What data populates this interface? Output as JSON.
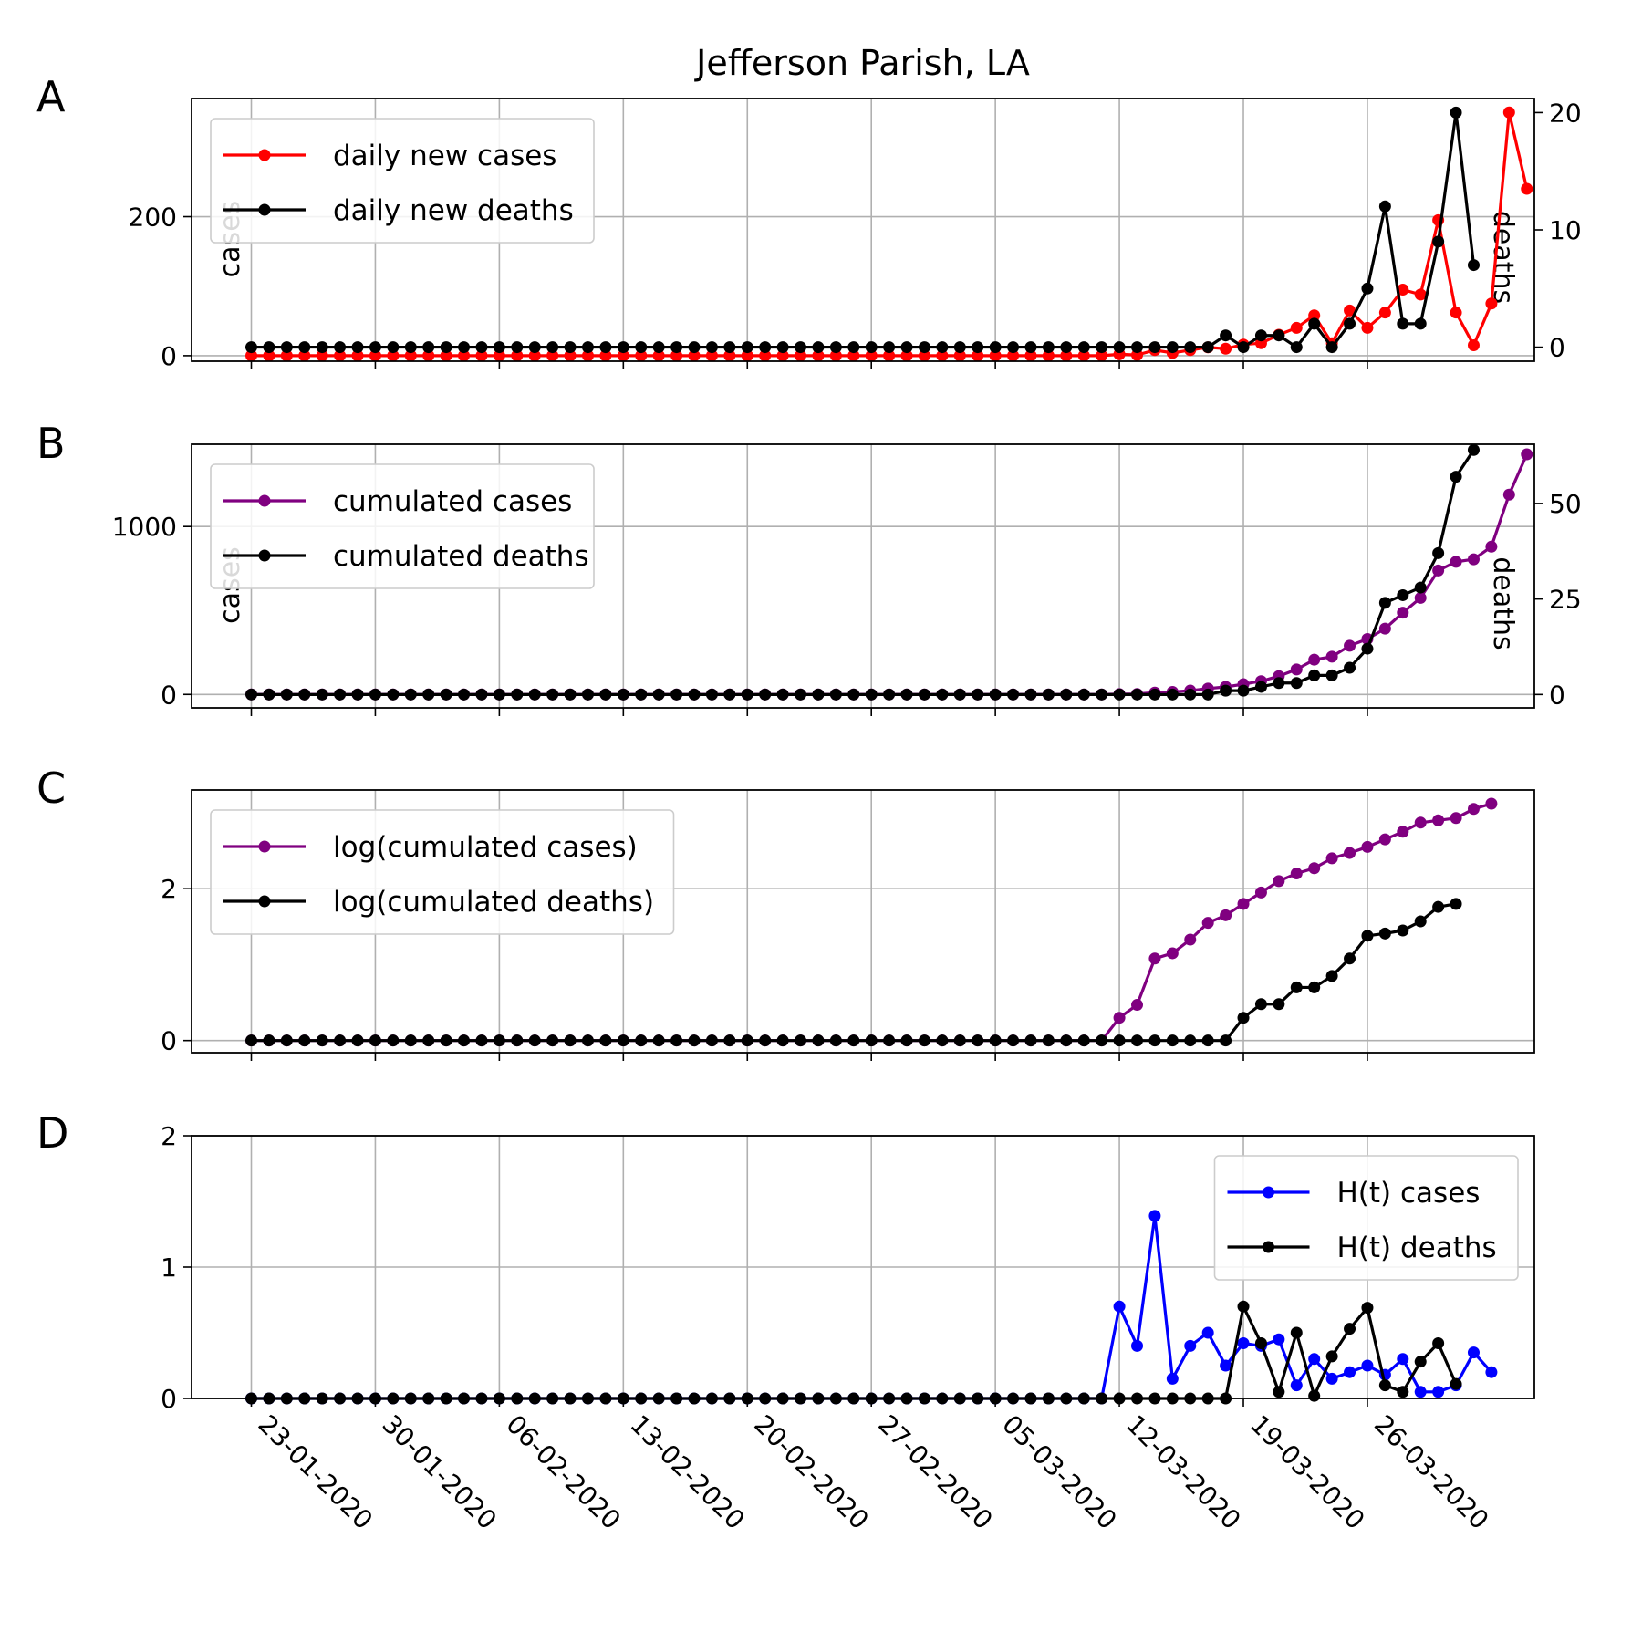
{
  "title": "Jefferson Parish, LA",
  "date_labels": [
    "23-01-2020",
    "30-01-2020",
    "06-02-2020",
    "13-02-2020",
    "20-02-2020",
    "27-02-2020",
    "05-03-2020",
    "12-03-2020",
    "19-03-2020",
    "26-03-2020"
  ],
  "colors": {
    "cases_daily": "#ff0000",
    "cumulated": "#800080",
    "ht_cases": "#0000ff",
    "deaths": "#000000",
    "grid": "#b0b0b0"
  },
  "chart_data": [
    {
      "type": "line",
      "panel": "A",
      "left_ylabel": "cases",
      "right_ylabel": "deaths",
      "x_start": "23-01-2020",
      "x_end": "31-03-2020",
      "ylim": [
        -8,
        370
      ],
      "y_ticks": [
        0,
        200
      ],
      "y2lim": [
        -1.2,
        21.2
      ],
      "y2_ticks": [
        0,
        10,
        20
      ],
      "legend_position": "upper-left",
      "series": [
        {
          "name": "daily new cases",
          "axis": "left",
          "color": "#ff0000",
          "values": [
            0,
            0,
            0,
            0,
            0,
            0,
            0,
            0,
            0,
            0,
            0,
            0,
            0,
            0,
            0,
            0,
            0,
            0,
            0,
            0,
            0,
            0,
            0,
            0,
            0,
            0,
            0,
            0,
            0,
            0,
            0,
            0,
            0,
            0,
            0,
            0,
            0,
            0,
            0,
            0,
            0,
            0,
            0,
            0,
            0,
            0,
            0,
            0,
            0,
            2,
            1,
            8,
            4,
            8,
            12,
            10,
            16,
            18,
            30,
            40,
            58,
            18,
            65,
            40,
            62,
            95,
            88,
            195,
            62,
            15,
            75,
            350,
            240
          ]
        },
        {
          "name": "daily new deaths",
          "axis": "right",
          "color": "#000000",
          "values": [
            0,
            0,
            0,
            0,
            0,
            0,
            0,
            0,
            0,
            0,
            0,
            0,
            0,
            0,
            0,
            0,
            0,
            0,
            0,
            0,
            0,
            0,
            0,
            0,
            0,
            0,
            0,
            0,
            0,
            0,
            0,
            0,
            0,
            0,
            0,
            0,
            0,
            0,
            0,
            0,
            0,
            0,
            0,
            0,
            0,
            0,
            0,
            0,
            0,
            0,
            0,
            0,
            0,
            0,
            0,
            1,
            0,
            1,
            1,
            0,
            2,
            0,
            2,
            5,
            12,
            2,
            2,
            9,
            20,
            7
          ]
        }
      ]
    },
    {
      "type": "line",
      "panel": "B",
      "left_ylabel": "cases",
      "right_ylabel": "deaths",
      "x_start": "23-01-2020",
      "x_end": "31-03-2020",
      "ylim": [
        -80,
        1490
      ],
      "y_ticks": [
        0,
        1000
      ],
      "y2lim": [
        -3.5,
        65.5
      ],
      "y2_ticks": [
        0,
        25,
        50
      ],
      "legend_position": "upper-left",
      "series": [
        {
          "name": "cumulated cases",
          "axis": "left",
          "color": "#800080",
          "values": [
            0,
            0,
            0,
            0,
            0,
            0,
            0,
            0,
            0,
            0,
            0,
            0,
            0,
            0,
            0,
            0,
            0,
            0,
            0,
            0,
            0,
            0,
            0,
            0,
            0,
            0,
            0,
            0,
            0,
            0,
            0,
            0,
            0,
            0,
            0,
            0,
            0,
            0,
            0,
            0,
            0,
            0,
            0,
            0,
            0,
            0,
            0,
            0,
            0,
            2,
            3,
            11,
            15,
            23,
            35,
            45,
            61,
            79,
            109,
            149,
            207,
            225,
            290,
            330,
            392,
            487,
            575,
            738,
            790,
            805,
            880,
            1190,
            1430
          ]
        },
        {
          "name": "cumulated deaths",
          "axis": "right",
          "color": "#000000",
          "values": [
            0,
            0,
            0,
            0,
            0,
            0,
            0,
            0,
            0,
            0,
            0,
            0,
            0,
            0,
            0,
            0,
            0,
            0,
            0,
            0,
            0,
            0,
            0,
            0,
            0,
            0,
            0,
            0,
            0,
            0,
            0,
            0,
            0,
            0,
            0,
            0,
            0,
            0,
            0,
            0,
            0,
            0,
            0,
            0,
            0,
            0,
            0,
            0,
            0,
            0,
            0,
            0,
            0,
            0,
            0,
            1,
            1,
            2,
            3,
            3,
            5,
            5,
            7,
            12,
            24,
            26,
            28,
            37,
            57,
            64
          ]
        }
      ]
    },
    {
      "type": "line",
      "panel": "C",
      "x_start": "23-01-2020",
      "x_end": "31-03-2020",
      "ylim": [
        -0.16,
        3.3
      ],
      "y_ticks": [
        0,
        2
      ],
      "legend_position": "upper-left",
      "series": [
        {
          "name": "log(cumulated cases)",
          "color": "#800080",
          "values": [
            0,
            0,
            0,
            0,
            0,
            0,
            0,
            0,
            0,
            0,
            0,
            0,
            0,
            0,
            0,
            0,
            0,
            0,
            0,
            0,
            0,
            0,
            0,
            0,
            0,
            0,
            0,
            0,
            0,
            0,
            0,
            0,
            0,
            0,
            0,
            0,
            0,
            0,
            0,
            0,
            0,
            0,
            0,
            0,
            0,
            0,
            0,
            0,
            0,
            0.3,
            0.47,
            1.08,
            1.15,
            1.33,
            1.55,
            1.65,
            1.8,
            1.95,
            2.1,
            2.2,
            2.27,
            2.4,
            2.47,
            2.55,
            2.65,
            2.75,
            2.87,
            2.9,
            2.93,
            3.05,
            3.12
          ]
        },
        {
          "name": "log(cumulated deaths)",
          "color": "#000000",
          "values": [
            0,
            0,
            0,
            0,
            0,
            0,
            0,
            0,
            0,
            0,
            0,
            0,
            0,
            0,
            0,
            0,
            0,
            0,
            0,
            0,
            0,
            0,
            0,
            0,
            0,
            0,
            0,
            0,
            0,
            0,
            0,
            0,
            0,
            0,
            0,
            0,
            0,
            0,
            0,
            0,
            0,
            0,
            0,
            0,
            0,
            0,
            0,
            0,
            0,
            0,
            0,
            0,
            0,
            0,
            0,
            0,
            0.3,
            0.48,
            0.48,
            0.7,
            0.7,
            0.85,
            1.08,
            1.38,
            1.41,
            1.45,
            1.57,
            1.76,
            1.8
          ]
        }
      ]
    },
    {
      "type": "line",
      "panel": "D",
      "x_start": "23-01-2020",
      "x_end": "31-03-2020",
      "ylim": [
        0,
        2
      ],
      "y_ticks": [
        0,
        1,
        2
      ],
      "legend_position": "upper-right",
      "series": [
        {
          "name": "H(t) cases",
          "color": "#0000ff",
          "values": [
            0,
            0,
            0,
            0,
            0,
            0,
            0,
            0,
            0,
            0,
            0,
            0,
            0,
            0,
            0,
            0,
            0,
            0,
            0,
            0,
            0,
            0,
            0,
            0,
            0,
            0,
            0,
            0,
            0,
            0,
            0,
            0,
            0,
            0,
            0,
            0,
            0,
            0,
            0,
            0,
            0,
            0,
            0,
            0,
            0,
            0,
            0,
            0,
            0,
            0.7,
            0.4,
            1.39,
            0.15,
            0.4,
            0.5,
            0.25,
            0.42,
            0.4,
            0.45,
            0.1,
            0.3,
            0.15,
            0.2,
            0.25,
            0.18,
            0.3,
            0.05,
            0.05,
            0.1,
            0.35,
            0.2
          ]
        },
        {
          "name": "H(t) deaths",
          "color": "#000000",
          "values": [
            0,
            0,
            0,
            0,
            0,
            0,
            0,
            0,
            0,
            0,
            0,
            0,
            0,
            0,
            0,
            0,
            0,
            0,
            0,
            0,
            0,
            0,
            0,
            0,
            0,
            0,
            0,
            0,
            0,
            0,
            0,
            0,
            0,
            0,
            0,
            0,
            0,
            0,
            0,
            0,
            0,
            0,
            0,
            0,
            0,
            0,
            0,
            0,
            0,
            0,
            0,
            0,
            0,
            0,
            0,
            0,
            0.7,
            0.42,
            0.05,
            0.5,
            0.02,
            0.32,
            0.53,
            0.69,
            0.1,
            0.05,
            0.28,
            0.42,
            0.11
          ]
        }
      ]
    }
  ]
}
